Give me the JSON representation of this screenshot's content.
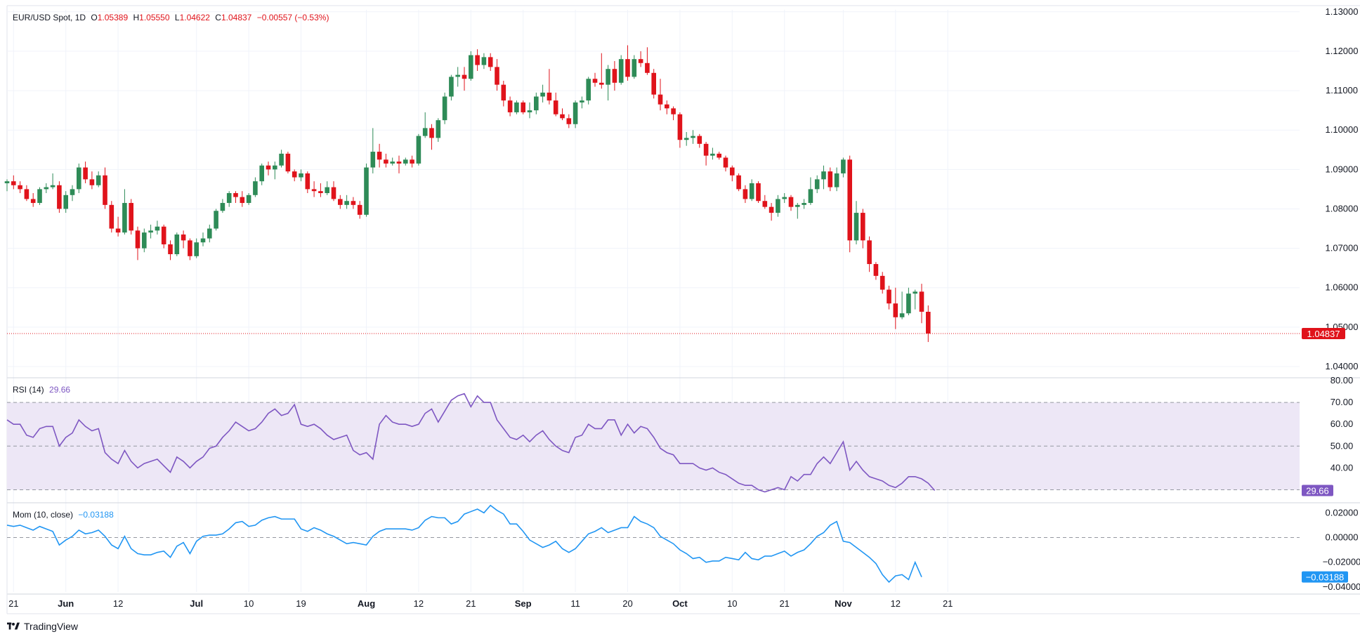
{
  "header": {
    "symbol": "EUR/USD Spot, 1D",
    "o_label": "O",
    "o": "1.05389",
    "h_label": "H",
    "h": "1.05550",
    "l_label": "L",
    "l": "1.04622",
    "c_label": "C",
    "c": "1.04837",
    "change": "−0.00557 (−0.53%)"
  },
  "rsi_legend": {
    "label": "RSI (14)",
    "value": "29.66"
  },
  "mom_legend": {
    "label": "Mom (10, close)",
    "value": "−0.03188"
  },
  "brand": {
    "name": "TradingView"
  },
  "colors": {
    "up": "#2e8b57",
    "down": "#e0131b",
    "rsi": "#7e57c2",
    "rsi_band": "#ede7f6",
    "mom": "#2196f3",
    "grid": "#f0f3fa",
    "text": "#131722"
  },
  "chart_data": [
    {
      "type": "candlestick",
      "name": "EUR/USD Spot, 1D",
      "y_range": [
        1.0375,
        1.1305
      ],
      "x_ticks": [
        {
          "index": 1,
          "label": "21"
        },
        {
          "index": 9,
          "label": "Jun"
        },
        {
          "index": 17,
          "label": "12"
        },
        {
          "index": 29,
          "label": "Jul"
        },
        {
          "index": 37,
          "label": "10"
        },
        {
          "index": 45,
          "label": "19"
        },
        {
          "index": 55,
          "label": "Aug"
        },
        {
          "index": 63,
          "label": "12"
        },
        {
          "index": 71,
          "label": "21"
        },
        {
          "index": 79,
          "label": "Sep"
        },
        {
          "index": 87,
          "label": "11"
        },
        {
          "index": 95,
          "label": "20"
        },
        {
          "index": 103,
          "label": "Oct"
        },
        {
          "index": 111,
          "label": "10"
        },
        {
          "index": 119,
          "label": "21"
        },
        {
          "index": 128,
          "label": "Nov"
        },
        {
          "index": 136,
          "label": "12"
        },
        {
          "index": 144,
          "label": "21"
        }
      ],
      "y_ticks": [
        "1.13000",
        "1.12000",
        "1.11000",
        "1.10000",
        "1.09000",
        "1.08000",
        "1.07000",
        "1.06000",
        "1.05000",
        "1.04000"
      ],
      "last_price_label": "1.04837",
      "last_price": 1.04837,
      "ohlc": [
        [
          1.0865,
          1.0875,
          1.0845,
          1.087
        ],
        [
          1.087,
          1.0885,
          1.085,
          1.086
        ],
        [
          1.086,
          1.087,
          1.084,
          1.085
        ],
        [
          1.085,
          1.086,
          1.082,
          1.0825
        ],
        [
          1.0825,
          1.084,
          1.0805,
          1.0815
        ],
        [
          1.0815,
          1.0855,
          1.081,
          1.085
        ],
        [
          1.085,
          1.0865,
          1.084,
          1.0855
        ],
        [
          1.0855,
          1.089,
          1.085,
          1.086
        ],
        [
          1.086,
          1.087,
          1.079,
          1.08
        ],
        [
          1.08,
          1.0845,
          1.079,
          1.0835
        ],
        [
          1.0835,
          1.086,
          1.082,
          1.085
        ],
        [
          1.085,
          1.0915,
          1.084,
          1.0905
        ],
        [
          1.0905,
          1.092,
          1.0865,
          1.0875
        ],
        [
          1.0875,
          1.0895,
          1.085,
          1.086
        ],
        [
          1.086,
          1.0895,
          1.0855,
          1.0885
        ],
        [
          1.0885,
          1.0905,
          1.08,
          1.081
        ],
        [
          1.081,
          1.082,
          1.074,
          1.075
        ],
        [
          1.075,
          1.078,
          1.073,
          1.074
        ],
        [
          1.074,
          1.085,
          1.0735,
          1.0815
        ],
        [
          1.0815,
          1.0825,
          1.0735,
          1.0745
        ],
        [
          1.0745,
          1.0755,
          1.067,
          1.07
        ],
        [
          1.07,
          1.075,
          1.069,
          1.074
        ],
        [
          1.074,
          1.076,
          1.0725,
          1.0745
        ],
        [
          1.0745,
          1.077,
          1.0735,
          1.0755
        ],
        [
          1.0755,
          1.076,
          1.07,
          1.071
        ],
        [
          1.071,
          1.072,
          1.067,
          1.0685
        ],
        [
          1.0685,
          1.074,
          1.068,
          1.0735
        ],
        [
          1.0735,
          1.0745,
          1.07,
          1.072
        ],
        [
          1.072,
          1.0725,
          1.067,
          1.068
        ],
        [
          1.068,
          1.0725,
          1.0675,
          1.0715
        ],
        [
          1.0715,
          1.074,
          1.0705,
          1.0725
        ],
        [
          1.0725,
          1.076,
          1.0715,
          1.075
        ],
        [
          1.075,
          1.08,
          1.0745,
          1.0795
        ],
        [
          1.0795,
          1.0825,
          1.079,
          1.0815
        ],
        [
          1.0815,
          1.0845,
          1.0805,
          1.084
        ],
        [
          1.084,
          1.0845,
          1.0815,
          1.083
        ],
        [
          1.083,
          1.0845,
          1.0805,
          1.0815
        ],
        [
          1.0815,
          1.084,
          1.081,
          1.0835
        ],
        [
          1.0835,
          1.088,
          1.083,
          1.087
        ],
        [
          1.087,
          1.0915,
          1.086,
          1.091
        ],
        [
          1.091,
          1.092,
          1.0885,
          1.09
        ],
        [
          1.09,
          1.092,
          1.0875,
          1.091
        ],
        [
          1.091,
          1.095,
          1.0905,
          1.094
        ],
        [
          1.094,
          1.0945,
          1.089,
          1.0895
        ],
        [
          1.0895,
          1.09,
          1.087,
          1.088
        ],
        [
          1.088,
          1.09,
          1.087,
          1.089
        ],
        [
          1.089,
          1.0895,
          1.084,
          1.085
        ],
        [
          1.085,
          1.087,
          1.083,
          1.0845
        ],
        [
          1.0845,
          1.0865,
          1.083,
          1.084
        ],
        [
          1.084,
          1.087,
          1.0835,
          1.0855
        ],
        [
          1.0855,
          1.087,
          1.082,
          1.0825
        ],
        [
          1.0825,
          1.0835,
          1.08,
          1.081
        ],
        [
          1.081,
          1.0835,
          1.08,
          1.082
        ],
        [
          1.082,
          1.083,
          1.08,
          1.081
        ],
        [
          1.081,
          1.082,
          1.0775,
          1.0785
        ],
        [
          1.0785,
          1.0915,
          1.078,
          1.0905
        ],
        [
          1.0905,
          1.1005,
          1.089,
          1.0945
        ],
        [
          1.0945,
          1.0965,
          1.0905,
          1.0925
        ],
        [
          1.0925,
          1.094,
          1.0905,
          1.0915
        ],
        [
          1.0915,
          1.093,
          1.091,
          1.092
        ],
        [
          1.092,
          1.0935,
          1.089,
          1.0915
        ],
        [
          1.0915,
          1.093,
          1.091,
          1.0925
        ],
        [
          1.0925,
          1.0935,
          1.0905,
          1.0915
        ],
        [
          1.0915,
          1.099,
          1.091,
          1.0985
        ],
        [
          1.0985,
          1.1045,
          1.098,
          1.1005
        ],
        [
          1.1005,
          1.1015,
          1.095,
          1.098
        ],
        [
          1.098,
          1.103,
          1.097,
          1.1025
        ],
        [
          1.1025,
          1.1095,
          1.1015,
          1.1085
        ],
        [
          1.1085,
          1.114,
          1.1075,
          1.1135
        ],
        [
          1.1135,
          1.116,
          1.111,
          1.114
        ],
        [
          1.114,
          1.116,
          1.11,
          1.113
        ],
        [
          1.113,
          1.12,
          1.1125,
          1.119
        ],
        [
          1.119,
          1.1205,
          1.115,
          1.1165
        ],
        [
          1.1165,
          1.1195,
          1.1155,
          1.1185
        ],
        [
          1.1185,
          1.1195,
          1.115,
          1.116
        ],
        [
          1.116,
          1.118,
          1.11,
          1.1115
        ],
        [
          1.1115,
          1.1125,
          1.106,
          1.1075
        ],
        [
          1.1075,
          1.1085,
          1.1035,
          1.1045
        ],
        [
          1.1045,
          1.1075,
          1.104,
          1.107
        ],
        [
          1.107,
          1.1075,
          1.104,
          1.1045
        ],
        [
          1.1045,
          1.107,
          1.103,
          1.105
        ],
        [
          1.105,
          1.1095,
          1.104,
          1.1085
        ],
        [
          1.1085,
          1.1115,
          1.107,
          1.1095
        ],
        [
          1.1095,
          1.1155,
          1.1065,
          1.1075
        ],
        [
          1.1075,
          1.1095,
          1.1035,
          1.104
        ],
        [
          1.104,
          1.1055,
          1.1025,
          1.103
        ],
        [
          1.103,
          1.104,
          1.1005,
          1.1015
        ],
        [
          1.1015,
          1.1075,
          1.1005,
          1.107
        ],
        [
          1.107,
          1.1085,
          1.1055,
          1.1075
        ],
        [
          1.1075,
          1.1135,
          1.1065,
          1.113
        ],
        [
          1.113,
          1.1145,
          1.111,
          1.112
        ],
        [
          1.112,
          1.1195,
          1.1105,
          1.1115
        ],
        [
          1.1115,
          1.1165,
          1.1075,
          1.1155
        ],
        [
          1.1155,
          1.1175,
          1.11,
          1.112
        ],
        [
          1.112,
          1.119,
          1.1115,
          1.118
        ],
        [
          1.118,
          1.1215,
          1.1125,
          1.1135
        ],
        [
          1.1135,
          1.119,
          1.113,
          1.118
        ],
        [
          1.118,
          1.12,
          1.116,
          1.117
        ],
        [
          1.117,
          1.121,
          1.114,
          1.1145
        ],
        [
          1.1145,
          1.1155,
          1.108,
          1.109
        ],
        [
          1.109,
          1.113,
          1.105,
          1.1065
        ],
        [
          1.1065,
          1.1075,
          1.104,
          1.1055
        ],
        [
          1.1055,
          1.106,
          1.1025,
          1.104
        ],
        [
          1.104,
          1.1045,
          1.0955,
          1.0975
        ],
        [
          1.0975,
          1.0995,
          1.096,
          1.098
        ],
        [
          1.098,
          1.1,
          1.0965,
          1.0985
        ],
        [
          1.0985,
          1.099,
          1.0955,
          1.0965
        ],
        [
          1.0965,
          1.097,
          1.091,
          1.0935
        ],
        [
          1.0935,
          1.0955,
          1.0925,
          1.094
        ],
        [
          1.094,
          1.0945,
          1.0925,
          1.093
        ],
        [
          1.093,
          1.0935,
          1.0895,
          1.0905
        ],
        [
          1.0905,
          1.091,
          1.087,
          1.0885
        ],
        [
          1.0885,
          1.089,
          1.0845,
          1.085
        ],
        [
          1.085,
          1.086,
          1.0815,
          1.0825
        ],
        [
          1.0825,
          1.0875,
          1.082,
          1.0865
        ],
        [
          1.0865,
          1.087,
          1.0815,
          1.082
        ],
        [
          1.082,
          1.0835,
          1.08,
          1.0805
        ],
        [
          1.0805,
          1.0815,
          1.077,
          1.079
        ],
        [
          1.079,
          1.0835,
          1.078,
          1.0825
        ],
        [
          1.0825,
          1.084,
          1.0815,
          1.083
        ],
        [
          1.083,
          1.0835,
          1.0795,
          1.0805
        ],
        [
          1.0805,
          1.0815,
          1.0775,
          1.081
        ],
        [
          1.081,
          1.0825,
          1.08,
          1.0815
        ],
        [
          1.0815,
          1.088,
          1.081,
          1.085
        ],
        [
          1.085,
          1.0885,
          1.084,
          1.0875
        ],
        [
          1.0875,
          1.091,
          1.085,
          1.0895
        ],
        [
          1.0895,
          1.0905,
          1.0845,
          1.0855
        ],
        [
          1.0855,
          1.0905,
          1.0845,
          1.089
        ],
        [
          1.089,
          1.093,
          1.088,
          1.0925
        ],
        [
          1.0925,
          1.0935,
          1.069,
          1.072
        ],
        [
          1.072,
          1.082,
          1.071,
          1.079
        ],
        [
          1.079,
          1.08,
          1.07,
          1.072
        ],
        [
          1.072,
          1.073,
          1.064,
          1.066
        ],
        [
          1.066,
          1.0665,
          1.062,
          1.063
        ],
        [
          1.063,
          1.064,
          1.0585,
          1.0595
        ],
        [
          1.0595,
          1.0605,
          1.0545,
          1.056
        ],
        [
          1.056,
          1.06,
          1.0495,
          1.0525
        ],
        [
          1.0525,
          1.059,
          1.052,
          1.0535
        ],
        [
          1.0535,
          1.06,
          1.053,
          1.0585
        ],
        [
          1.0585,
          1.0595,
          1.0545,
          1.059
        ],
        [
          1.059,
          1.061,
          1.051,
          1.0539
        ],
        [
          1.05389,
          1.0555,
          1.04622,
          1.04837
        ]
      ]
    },
    {
      "type": "line",
      "name": "RSI (14)",
      "y_range": [
        25,
        80
      ],
      "y_ticks": [
        "80.00",
        "70.00",
        "60.00",
        "50.00",
        "40.00"
      ],
      "levels": [
        70,
        50,
        30
      ],
      "last_value_label": "29.66",
      "values": [
        62,
        60,
        60,
        55,
        54,
        58,
        59,
        59,
        50,
        54,
        56,
        62,
        59,
        57,
        58,
        47,
        44,
        42,
        48,
        43,
        40,
        42,
        43,
        44,
        41,
        38,
        45,
        43,
        40,
        43,
        45,
        49,
        50,
        54,
        57,
        61,
        59,
        57,
        58,
        61,
        65,
        67,
        64,
        65,
        69,
        60,
        59,
        60,
        58,
        55,
        53,
        54,
        55,
        48,
        46,
        47,
        44,
        60,
        64,
        61,
        60,
        60,
        59,
        60,
        65,
        67,
        61,
        66,
        71,
        73,
        74,
        68,
        73,
        70,
        70,
        62,
        58,
        54,
        53,
        55,
        52,
        55,
        57,
        53,
        50,
        48,
        47,
        54,
        55,
        60,
        58,
        58,
        62,
        62,
        55,
        60,
        56,
        59,
        58,
        54,
        49,
        47,
        46,
        42,
        42,
        42,
        40,
        39,
        40,
        38,
        37,
        35,
        33,
        32,
        32,
        30,
        29,
        30,
        31,
        30,
        36,
        34,
        37,
        37,
        42,
        45,
        42,
        47,
        52,
        39,
        43,
        39,
        36,
        35,
        34,
        32,
        31,
        33,
        36,
        36,
        35,
        33,
        29.66
      ]
    },
    {
      "type": "line",
      "name": "Mom (10, close)",
      "y_range": [
        -0.044,
        0.027
      ],
      "y_ticks": [
        "0.02000",
        "0.00000",
        "−0.02000",
        "−0.04000"
      ],
      "zero_line": 0,
      "last_value_label": "−0.03188",
      "values": [
        0.01,
        0.009,
        0.01,
        0.008,
        0.006,
        0.009,
        0.007,
        0.005,
        -0.006,
        -0.002,
        0.001,
        0.006,
        0.003,
        0.004,
        0.006,
        0.001,
        -0.006,
        -0.009,
        0.001,
        -0.009,
        -0.013,
        -0.014,
        -0.014,
        -0.012,
        -0.011,
        -0.016,
        -0.007,
        -0.004,
        -0.013,
        -0.003,
        0.001,
        0.002,
        0.002,
        0.003,
        0.007,
        0.012,
        0.013,
        0.009,
        0.01,
        0.014,
        0.016,
        0.017,
        0.015,
        0.015,
        0.015,
        0.007,
        0.005,
        0.008,
        0.006,
        0.003,
        0.001,
        -0.002,
        -0.005,
        -0.004,
        -0.005,
        -0.006,
        0.001,
        0.005,
        0.007,
        0.007,
        0.007,
        0.007,
        0.006,
        0.008,
        0.014,
        0.017,
        0.016,
        0.016,
        0.011,
        0.013,
        0.019,
        0.021,
        0.023,
        0.02,
        0.026,
        0.022,
        0.019,
        0.011,
        0.011,
        0.005,
        -0.002,
        -0.005,
        -0.008,
        -0.006,
        -0.003,
        -0.009,
        -0.012,
        -0.009,
        -0.003,
        0.003,
        0.005,
        0.008,
        0.004,
        0.006,
        0.008,
        0.008,
        0.017,
        0.013,
        0.011,
        0.008,
        0.001,
        -0.002,
        -0.005,
        -0.01,
        -0.013,
        -0.017,
        -0.016,
        -0.02,
        -0.019,
        -0.019,
        -0.016,
        -0.017,
        -0.018,
        -0.012,
        -0.017,
        -0.018,
        -0.015,
        -0.015,
        -0.013,
        -0.011,
        -0.015,
        -0.012,
        -0.01,
        -0.005,
        0.001,
        0.004,
        0.01,
        0.013,
        -0.003,
        -0.004,
        -0.008,
        -0.012,
        -0.016,
        -0.021,
        -0.03,
        -0.036,
        -0.031,
        -0.03,
        -0.034,
        -0.02,
        -0.03188
      ]
    }
  ]
}
